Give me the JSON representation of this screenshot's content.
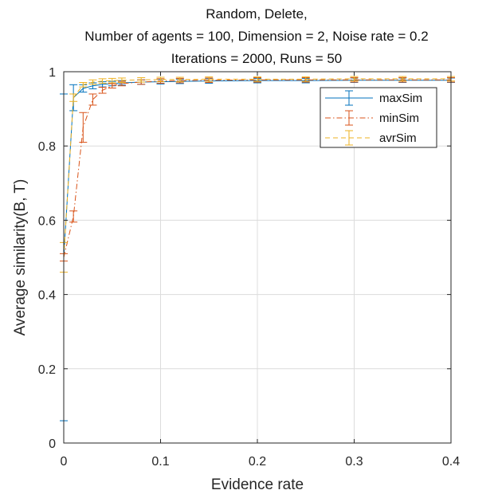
{
  "chart_data": {
    "type": "line",
    "title_lines": [
      "Random, Delete,",
      "Number of agents = 100, Dimension = 2, Noise rate = 0.2",
      "Iterations = 2000, Runs = 50"
    ],
    "xlabel": "Evidence rate",
    "ylabel": "Average similarity(B, T)",
    "xlim": [
      0,
      0.4
    ],
    "ylim": [
      0,
      1
    ],
    "xticks": [
      0,
      0.1,
      0.2,
      0.3,
      0.4
    ],
    "xtick_labels": [
      "0",
      "0.1",
      "0.2",
      "0.3",
      "0.4"
    ],
    "yticks": [
      0,
      0.2,
      0.4,
      0.6,
      0.8,
      1
    ],
    "ytick_labels": [
      "0",
      "0.2",
      "0.4",
      "0.6",
      "0.8",
      "1"
    ],
    "grid": true,
    "legend_position": "top-right",
    "error_bars": true,
    "series": [
      {
        "name": "maxSim",
        "color": "#0072BD",
        "style": "solid",
        "x": [
          0,
          0.01,
          0.02,
          0.03,
          0.04,
          0.05,
          0.06,
          0.08,
          0.1,
          0.12,
          0.15,
          0.2,
          0.25,
          0.3,
          0.35,
          0.4
        ],
        "y": [
          0.5,
          0.93,
          0.955,
          0.962,
          0.966,
          0.968,
          0.97,
          0.972,
          0.973,
          0.974,
          0.975,
          0.976,
          0.976,
          0.977,
          0.977,
          0.977
        ],
        "err": [
          0.44,
          0.035,
          0.01,
          0.008,
          0.007,
          0.006,
          0.006,
          0.006,
          0.006,
          0.006,
          0.006,
          0.006,
          0.006,
          0.006,
          0.006,
          0.006
        ]
      },
      {
        "name": "minSim",
        "color": "#D95319",
        "style": "dashdot",
        "x": [
          0,
          0.01,
          0.02,
          0.03,
          0.04,
          0.05,
          0.06,
          0.08,
          0.1,
          0.12,
          0.15,
          0.2,
          0.25,
          0.3,
          0.35,
          0.4
        ],
        "y": [
          0.5,
          0.61,
          0.85,
          0.925,
          0.95,
          0.962,
          0.968,
          0.972,
          0.975,
          0.976,
          0.977,
          0.978,
          0.978,
          0.978,
          0.978,
          0.978
        ],
        "err": [
          0.01,
          0.015,
          0.04,
          0.015,
          0.008,
          0.006,
          0.006,
          0.006,
          0.006,
          0.006,
          0.006,
          0.006,
          0.006,
          0.006,
          0.006,
          0.006
        ]
      },
      {
        "name": "avrSim",
        "color": "#EDB120",
        "style": "dashed",
        "x": [
          0,
          0.01,
          0.02,
          0.03,
          0.04,
          0.05,
          0.06,
          0.08,
          0.1,
          0.12,
          0.15,
          0.2,
          0.25,
          0.3,
          0.35,
          0.4
        ],
        "y": [
          0.5,
          0.93,
          0.965,
          0.972,
          0.975,
          0.976,
          0.977,
          0.978,
          0.979,
          0.979,
          0.98,
          0.98,
          0.98,
          0.981,
          0.981,
          0.981
        ],
        "err": [
          0.04,
          0.01,
          0.006,
          0.006,
          0.006,
          0.006,
          0.006,
          0.006,
          0.006,
          0.006,
          0.006,
          0.006,
          0.006,
          0.006,
          0.006,
          0.006
        ]
      }
    ]
  }
}
